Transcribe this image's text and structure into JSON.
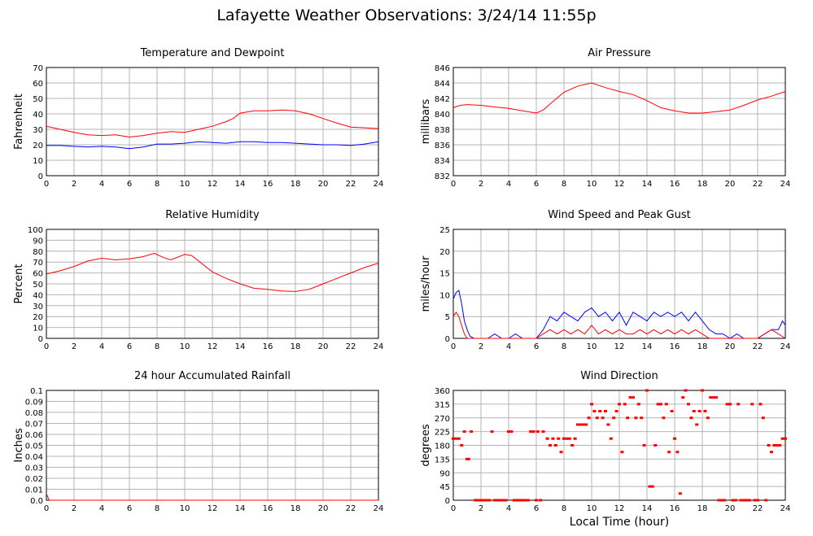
{
  "page": {
    "title": "Lafayette Weather Observations: 3/24/14 11:55p",
    "x_axis_title": "Local Time (hour)"
  },
  "chart_data": [
    {
      "id": "temperature",
      "type": "line",
      "title": "Temperature and Dewpoint",
      "xlabel": "",
      "ylabel": "Fahrenheit",
      "xlim": [
        0,
        24
      ],
      "ylim": [
        0,
        70
      ],
      "xticks": [
        0,
        2,
        4,
        6,
        8,
        10,
        12,
        14,
        16,
        18,
        20,
        22,
        24
      ],
      "yticks": [
        0,
        10,
        20,
        30,
        40,
        50,
        60,
        70
      ],
      "grid": true,
      "series": [
        {
          "color": "#ff0000",
          "x": [
            0,
            1,
            2,
            3,
            4,
            5,
            6,
            7,
            8,
            9,
            10,
            11,
            12,
            13,
            13.5,
            14,
            15,
            16,
            17,
            18,
            19,
            20,
            21,
            22,
            23,
            24
          ],
          "y": [
            32,
            30,
            28,
            26.5,
            26,
            26.5,
            25,
            26,
            27.5,
            28.5,
            28,
            30,
            32,
            35,
            37,
            40.5,
            42,
            42,
            42.5,
            42,
            40,
            37,
            34,
            31.5,
            31,
            30.5
          ]
        },
        {
          "color": "#0000ff",
          "x": [
            0,
            1,
            2,
            3,
            4,
            5,
            6,
            7,
            8,
            9,
            10,
            11,
            12,
            13,
            14,
            15,
            16,
            17,
            18,
            19,
            20,
            21,
            22,
            23,
            24
          ],
          "y": [
            19.5,
            19.5,
            19,
            18.5,
            19,
            18.5,
            17.5,
            18.5,
            20.5,
            20.5,
            21,
            22,
            21.5,
            21,
            22,
            22,
            21.5,
            21.5,
            21,
            20.5,
            20,
            20,
            19.5,
            20.5,
            22
          ]
        }
      ]
    },
    {
      "id": "pressure",
      "type": "line",
      "title": "Air Pressure",
      "xlabel": "",
      "ylabel": "millibars",
      "xlim": [
        0,
        24
      ],
      "ylim": [
        832,
        846
      ],
      "xticks": [
        0,
        2,
        4,
        6,
        8,
        10,
        12,
        14,
        16,
        18,
        20,
        22,
        24
      ],
      "yticks": [
        832,
        834,
        836,
        838,
        840,
        842,
        844,
        846
      ],
      "grid": true,
      "series": [
        {
          "color": "#ff0000",
          "x": [
            0,
            0.5,
            1,
            2,
            3,
            4,
            5,
            6,
            6.5,
            7,
            8,
            9,
            10,
            11,
            12,
            13,
            14,
            15,
            16,
            17,
            18,
            19,
            20,
            21,
            22,
            23,
            24
          ],
          "y": [
            840.8,
            841.1,
            841.2,
            841.1,
            840.9,
            840.7,
            840.4,
            840.1,
            840.5,
            841.3,
            842.8,
            843.6,
            844,
            843.4,
            842.9,
            842.5,
            841.7,
            840.8,
            840.4,
            840.1,
            840.1,
            840.3,
            840.5,
            841.1,
            841.8,
            842.3,
            842.9
          ]
        }
      ]
    },
    {
      "id": "humidity",
      "type": "line",
      "title": "Relative Humidity",
      "xlabel": "",
      "ylabel": "Percent",
      "xlim": [
        0,
        24
      ],
      "ylim": [
        0,
        100
      ],
      "xticks": [
        0,
        2,
        4,
        6,
        8,
        10,
        12,
        14,
        16,
        18,
        20,
        22,
        24
      ],
      "yticks": [
        0,
        10,
        20,
        30,
        40,
        50,
        60,
        70,
        80,
        90,
        100
      ],
      "grid": true,
      "series": [
        {
          "color": "#ff0000",
          "x": [
            0,
            1,
            2,
            3,
            4,
            5,
            6,
            7,
            7.8,
            8.5,
            9,
            10,
            10.5,
            11,
            12,
            13,
            14,
            15,
            16,
            17,
            18,
            19,
            20,
            21,
            22,
            23,
            24
          ],
          "y": [
            59,
            62,
            66,
            71,
            73.5,
            72,
            73,
            75,
            78,
            74,
            72,
            77,
            76,
            71,
            61,
            55,
            50,
            46,
            45,
            43.5,
            43,
            45,
            50,
            55,
            60,
            65,
            69
          ]
        }
      ]
    },
    {
      "id": "wind-speed",
      "type": "line",
      "title": "Wind Speed and Peak Gust",
      "xlabel": "",
      "ylabel": "miles/hour",
      "xlim": [
        0,
        24
      ],
      "ylim": [
        0,
        25
      ],
      "xticks": [
        0,
        2,
        4,
        6,
        8,
        10,
        12,
        14,
        16,
        18,
        20,
        22,
        24
      ],
      "yticks": [
        0,
        5,
        10,
        15,
        20,
        25
      ],
      "grid": true,
      "series": [
        {
          "color": "#0000ff",
          "x": [
            0,
            0.2,
            0.4,
            0.6,
            0.8,
            1.0,
            1.2,
            1.5,
            2.5,
            3.0,
            3.5,
            4.0,
            4.5,
            5.0,
            5.5,
            6.0,
            6.5,
            7.0,
            7.5,
            8.0,
            8.5,
            9.0,
            9.5,
            10.0,
            10.5,
            11.0,
            11.5,
            12.0,
            12.5,
            13.0,
            13.5,
            14.0,
            14.5,
            15.0,
            15.5,
            16.0,
            16.5,
            17.0,
            17.5,
            18.0,
            18.5,
            19.0,
            19.5,
            20.0,
            20.5,
            21.0,
            21.5,
            22.0,
            22.5,
            23.0,
            23.5,
            23.8,
            24.0
          ],
          "y": [
            9,
            10.5,
            11,
            8,
            4,
            2,
            0.5,
            0,
            0,
            1,
            0,
            0,
            1,
            0,
            0,
            0,
            2,
            5,
            4,
            6,
            5,
            4,
            6,
            7,
            5,
            6,
            4,
            6,
            3,
            6,
            5,
            4,
            6,
            5,
            6,
            5,
            6,
            4,
            6,
            4,
            2,
            1,
            1,
            0,
            1,
            0,
            0,
            0,
            1,
            2,
            2,
            4,
            3
          ]
        },
        {
          "color": "#ff0000",
          "x": [
            0,
            0.2,
            0.4,
            0.6,
            0.8,
            1.0,
            1.5,
            6.0,
            6.5,
            7.0,
            7.5,
            8.0,
            8.5,
            9.0,
            9.5,
            10.0,
            10.5,
            11.0,
            11.5,
            12.0,
            12.5,
            13.0,
            13.5,
            14.0,
            14.5,
            15.0,
            15.5,
            16.0,
            16.5,
            17.0,
            17.5,
            18.0,
            18.5,
            19.0,
            22.0,
            22.5,
            23.0,
            23.5,
            24.0
          ],
          "y": [
            5,
            6,
            5,
            3,
            1,
            0,
            0,
            0,
            1,
            2,
            1,
            2,
            1,
            2,
            1,
            3,
            1,
            2,
            1,
            2,
            1,
            1,
            2,
            1,
            2,
            1,
            2,
            1,
            2,
            1,
            2,
            1,
            0,
            0,
            0,
            1,
            2,
            1,
            0
          ]
        }
      ]
    },
    {
      "id": "rainfall",
      "type": "line",
      "title": "24 hour Accumulated Rainfall",
      "xlabel": "",
      "ylabel": "Inches",
      "xlim": [
        0,
        24
      ],
      "ylim": [
        0,
        0.1
      ],
      "xticks": [
        0,
        2,
        4,
        6,
        8,
        10,
        12,
        14,
        16,
        18,
        20,
        22,
        24
      ],
      "yticks": [
        "0.0",
        "0.01",
        "0.02",
        "0.03",
        "0.04",
        "0.05",
        "0.06",
        "0.07",
        "0.08",
        "0.09",
        "0.1"
      ],
      "grid": true,
      "series": [
        {
          "color": "#ff0000",
          "x": [
            0,
            0.1,
            0.2,
            24
          ],
          "y": [
            0.006,
            0.003,
            0,
            0
          ]
        }
      ]
    },
    {
      "id": "wind-direction",
      "type": "scatter",
      "title": "Wind Direction",
      "xlabel": "Local Time (hour)",
      "ylabel": "degrees",
      "xlim": [
        0,
        24
      ],
      "ylim": [
        0,
        360
      ],
      "xticks": [
        0,
        2,
        4,
        6,
        8,
        10,
        12,
        14,
        16,
        18,
        20,
        22,
        24
      ],
      "yticks": [
        0,
        45,
        90,
        135,
        180,
        225,
        270,
        315,
        360
      ],
      "grid": true,
      "series": [
        {
          "color": "#ff0000",
          "x": [
            0,
            0.2,
            0.4,
            0.6,
            0.8,
            1.0,
            1.1,
            1.3,
            1.6,
            1.8,
            2.0,
            2.2,
            2.4,
            2.6,
            2.8,
            3.0,
            3.2,
            3.4,
            3.6,
            3.8,
            4.0,
            4.2,
            4.4,
            4.6,
            4.8,
            5.0,
            5.2,
            5.4,
            5.6,
            5.8,
            6.0,
            6.1,
            6.3,
            6.5,
            6.8,
            7.0,
            7.2,
            7.4,
            7.6,
            7.8,
            8.0,
            8.2,
            8.4,
            8.6,
            8.8,
            9.0,
            9.2,
            9.4,
            9.6,
            9.8,
            10.0,
            10.2,
            10.4,
            10.6,
            10.8,
            11.0,
            11.2,
            11.4,
            11.6,
            11.8,
            12.0,
            12.2,
            12.4,
            12.6,
            12.8,
            13.0,
            13.2,
            13.4,
            13.6,
            13.8,
            14.0,
            14.2,
            14.4,
            14.6,
            14.8,
            15.0,
            15.2,
            15.4,
            15.6,
            15.8,
            16.0,
            16.2,
            16.4,
            16.6,
            16.8,
            17.0,
            17.2,
            17.4,
            17.6,
            17.8,
            18.0,
            18.2,
            18.4,
            18.6,
            18.8,
            19.0,
            19.2,
            19.4,
            19.6,
            19.8,
            20.0,
            20.2,
            20.4,
            20.6,
            20.8,
            21.0,
            21.2,
            21.4,
            21.6,
            21.8,
            22.0,
            22.2,
            22.4,
            22.6,
            22.8,
            23.0,
            23.2,
            23.4,
            23.6,
            23.8,
            24.0
          ],
          "y": [
            202,
            202,
            202,
            180,
            225,
            135,
            135,
            225,
            0,
            0,
            0,
            0,
            0,
            0,
            225,
            0,
            0,
            0,
            0,
            0,
            225,
            225,
            0,
            0,
            0,
            0,
            0,
            0,
            225,
            225,
            0,
            225,
            0,
            225,
            202,
            180,
            202,
            180,
            202,
            158,
            202,
            202,
            202,
            180,
            202,
            248,
            248,
            248,
            248,
            270,
            315,
            292,
            270,
            292,
            270,
            292,
            248,
            202,
            270,
            292,
            315,
            158,
            315,
            270,
            337,
            337,
            270,
            315,
            270,
            180,
            360,
            45,
            45,
            180,
            315,
            315,
            270,
            315,
            158,
            292,
            202,
            158,
            22,
            337,
            360,
            315,
            270,
            292,
            248,
            292,
            360,
            292,
            270,
            337,
            337,
            337,
            0,
            0,
            0,
            315,
            315,
            0,
            0,
            315,
            0,
            0,
            0,
            0,
            315,
            0,
            0,
            315,
            270,
            0,
            180,
            158,
            180,
            180,
            180,
            202,
            202
          ]
        }
      ]
    }
  ]
}
